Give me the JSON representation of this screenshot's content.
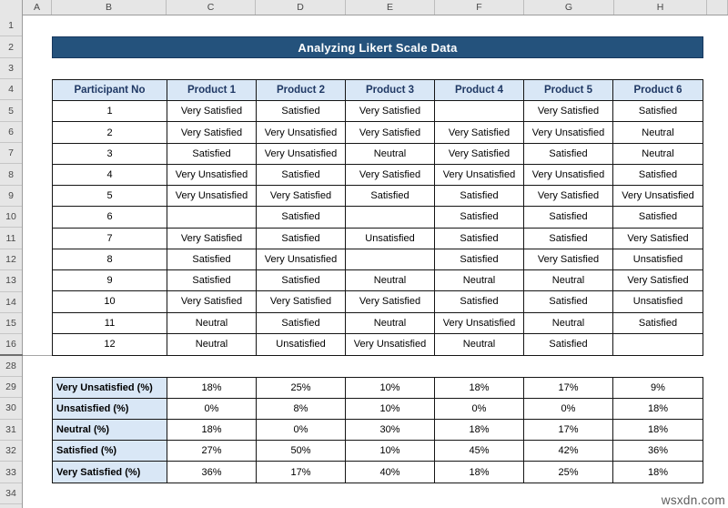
{
  "spreadsheet": {
    "title": "Analyzing Likert Scale Data",
    "column_letters": [
      "A",
      "B",
      "C",
      "D",
      "E",
      "F",
      "G",
      "H"
    ],
    "row_numbers": [
      "1",
      "2",
      "3",
      "4",
      "5",
      "6",
      "7",
      "8",
      "9",
      "10",
      "11",
      "12",
      "13",
      "14",
      "15",
      "16",
      "28",
      "29",
      "30",
      "31",
      "32",
      "33",
      "34"
    ]
  },
  "main_table": {
    "headers": [
      "Participant No",
      "Product 1",
      "Product 2",
      "Product 3",
      "Product 4",
      "Product 5",
      "Product 6"
    ],
    "rows": [
      {
        "participant": "1",
        "values": [
          "Very Satisfied",
          "Satisfied",
          "Very Satisfied",
          "",
          "Very Satisfied",
          "Satisfied"
        ]
      },
      {
        "participant": "2",
        "values": [
          "Very Satisfied",
          "Very Unsatisfied",
          "Very Satisfied",
          "Very Satisfied",
          "Very Unsatisfied",
          "Neutral"
        ]
      },
      {
        "participant": "3",
        "values": [
          "Satisfied",
          "Very Unsatisfied",
          "Neutral",
          "Very Satisfied",
          "Satisfied",
          "Neutral"
        ]
      },
      {
        "participant": "4",
        "values": [
          "Very Unsatisfied",
          "Satisfied",
          "Very Satisfied",
          "Very Unsatisfied",
          "Very Unsatisfied",
          "Satisfied"
        ]
      },
      {
        "participant": "5",
        "values": [
          "Very Unsatisfied",
          "Very Satisfied",
          "Satisfied",
          "Satisfied",
          "Very Satisfied",
          "Very Unsatisfied"
        ]
      },
      {
        "participant": "6",
        "values": [
          "",
          "Satisfied",
          "",
          "Satisfied",
          "Satisfied",
          "Satisfied"
        ]
      },
      {
        "participant": "7",
        "values": [
          "Very Satisfied",
          "Satisfied",
          "Unsatisfied",
          "Satisfied",
          "Satisfied",
          "Very Satisfied"
        ]
      },
      {
        "participant": "8",
        "values": [
          "Satisfied",
          "Very Unsatisfied",
          "",
          "Satisfied",
          "Very Satisfied",
          "Unsatisfied"
        ]
      },
      {
        "participant": "9",
        "values": [
          "Satisfied",
          "Satisfied",
          "Neutral",
          "Neutral",
          "Neutral",
          "Very Satisfied"
        ]
      },
      {
        "participant": "10",
        "values": [
          "Very Satisfied",
          "Very Satisfied",
          "Very Satisfied",
          "Satisfied",
          "Satisfied",
          "Unsatisfied"
        ]
      },
      {
        "participant": "11",
        "values": [
          "Neutral",
          "Satisfied",
          "Neutral",
          "Very Unsatisfied",
          "Neutral",
          "Satisfied"
        ]
      },
      {
        "participant": "12",
        "values": [
          "Neutral",
          "Unsatisfied",
          "Very Unsatisfied",
          "Neutral",
          "Satisfied",
          ""
        ]
      }
    ]
  },
  "summary_table": {
    "rows": [
      {
        "label": "Very Unsatisfied (%)",
        "values": [
          "18%",
          "25%",
          "10%",
          "18%",
          "17%",
          "9%"
        ]
      },
      {
        "label": "Unsatisfied (%)",
        "values": [
          "0%",
          "8%",
          "10%",
          "0%",
          "0%",
          "18%"
        ]
      },
      {
        "label": "Neutral (%)",
        "values": [
          "18%",
          "0%",
          "30%",
          "18%",
          "17%",
          "18%"
        ]
      },
      {
        "label": "Satisfied (%)",
        "values": [
          "27%",
          "50%",
          "10%",
          "45%",
          "42%",
          "36%"
        ]
      },
      {
        "label": "Very Satisfied (%)",
        "values": [
          "36%",
          "17%",
          "40%",
          "18%",
          "25%",
          "18%"
        ]
      }
    ]
  },
  "watermark": "wsxdn.com",
  "colors": {
    "title_bar_bg": "#24527C",
    "title_text": "#FFFFFF",
    "table_header_bg": "#D9E7F6",
    "table_header_text": "#1F3864",
    "summary_label_bg": "#D9E7F6",
    "grid_border": "#151515",
    "band_bg": "#E6E6E6"
  }
}
